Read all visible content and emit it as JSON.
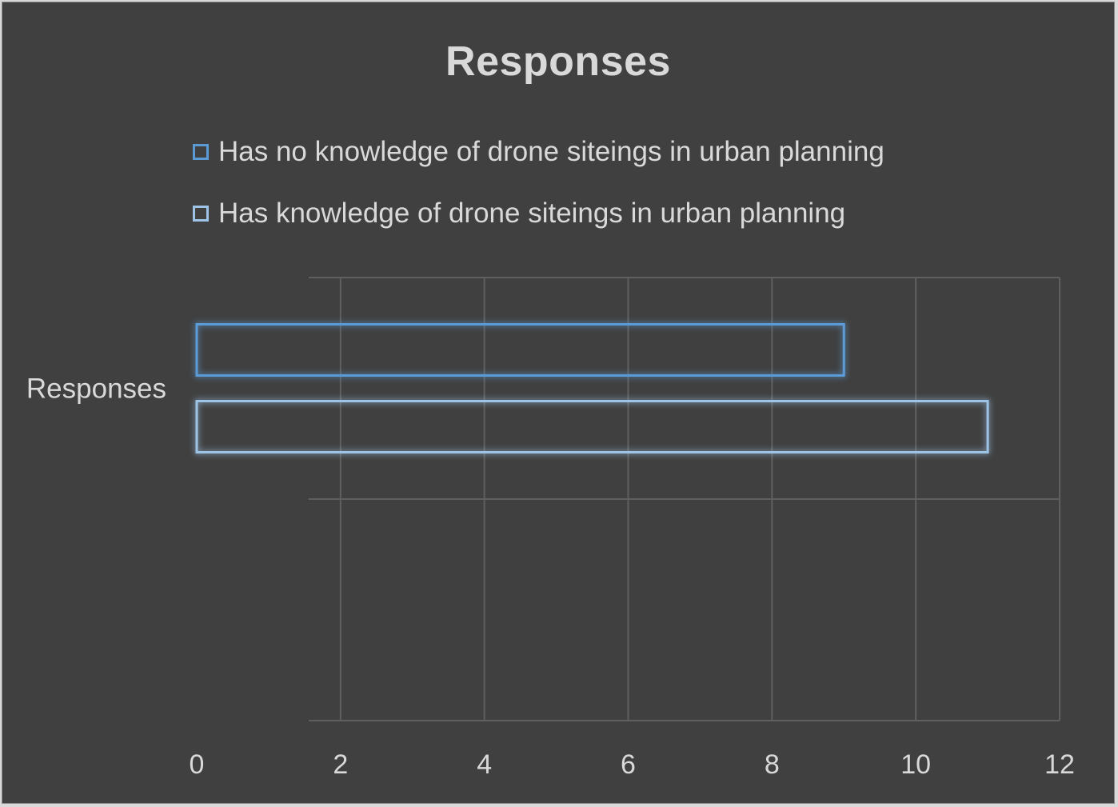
{
  "chart_data": {
    "type": "bar",
    "orientation": "horizontal",
    "title": "Responses",
    "categories": [
      "Responses"
    ],
    "series": [
      {
        "name": "Has no knowledge of drone siteings in urban planning",
        "values": [
          9
        ],
        "color": "#5b9bd5"
      },
      {
        "name": "Has knowledge of drone siteings in urban planning",
        "values": [
          11
        ],
        "color": "#9dc3e6"
      }
    ],
    "xlim": [
      0,
      12
    ],
    "x_ticks": [
      "0",
      "2",
      "4",
      "6",
      "8",
      "10",
      "12"
    ],
    "grid": true,
    "legend_position": "top"
  },
  "colors": {
    "background": "#404040",
    "text": "#d9d9d9",
    "gridline": "#5f5f5f"
  }
}
